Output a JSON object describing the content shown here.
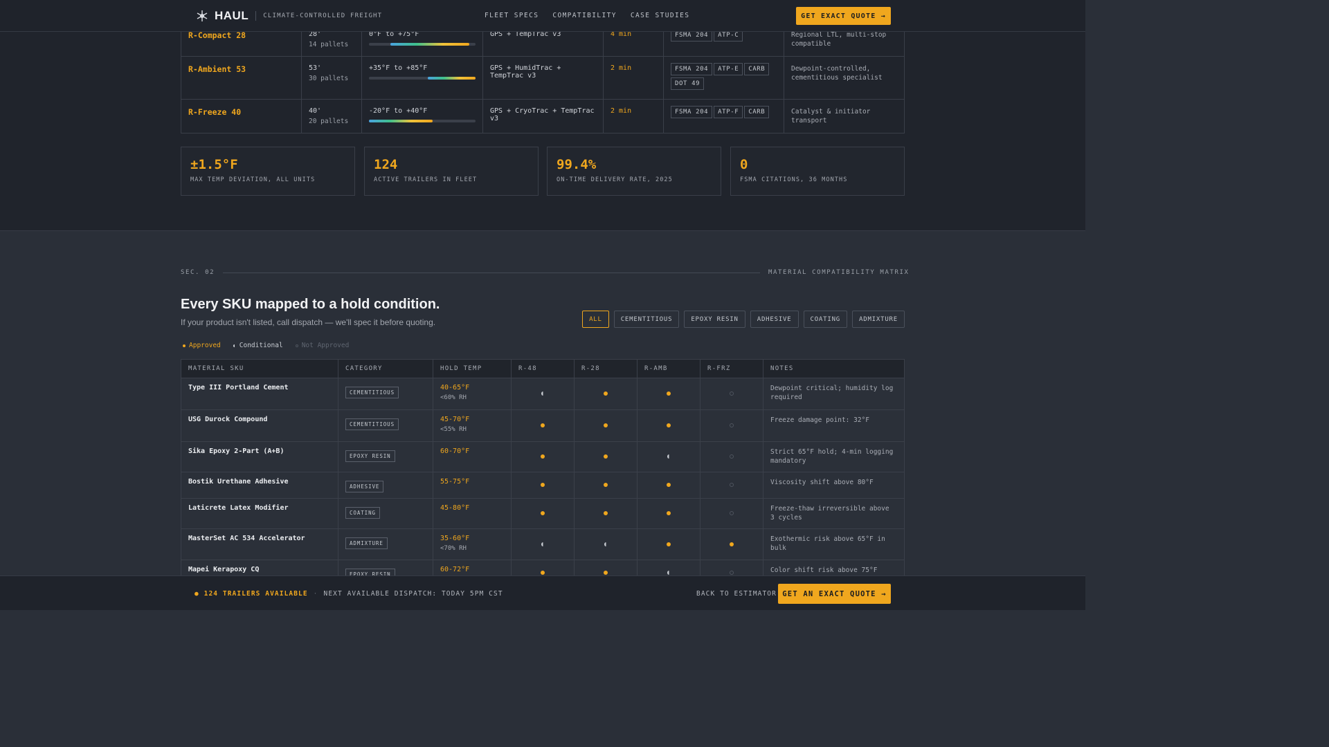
{
  "header": {
    "brand": "HAUL",
    "tagline": "CLIMATE-CONTROLLED FREIGHT",
    "nav": [
      "FLEET SPECS",
      "COMPATIBILITY",
      "CASE STUDIES"
    ],
    "cta": "GET EXACT QUOTE →"
  },
  "fleet": {
    "rows": [
      {
        "unit": "R-Compact 28",
        "length": "28'",
        "pallets": "14 pallets",
        "range": "0°F to +75°F",
        "bar_start": 0.2,
        "bar_end": 0.94,
        "tracking": "GPS + TempTrac v3",
        "interval": "4 min",
        "certs": [
          "FSMA 204",
          "ATP-C"
        ],
        "note": "Regional LTL, multi-stop compatible"
      },
      {
        "unit": "R-Ambient 53",
        "length": "53'",
        "pallets": "30 pallets",
        "range": "+35°F to +85°F",
        "bar_start": 0.55,
        "bar_end": 1.0,
        "tracking": "GPS + HumidTrac + TempTrac v3",
        "interval": "2 min",
        "certs": [
          "FSMA 204",
          "ATP-E",
          "CARB",
          "DOT 49"
        ],
        "note": "Dewpoint-controlled, cementitious specialist"
      },
      {
        "unit": "R-Freeze 40",
        "length": "40'",
        "pallets": "20 pallets",
        "range": "-20°F to +40°F",
        "bar_start": 0.0,
        "bar_end": 0.6,
        "tracking": "GPS + CryoTrac + TempTrac v3",
        "interval": "2 min",
        "certs": [
          "FSMA 204",
          "ATP-F",
          "CARB"
        ],
        "note": "Catalyst & initiator transport"
      }
    ]
  },
  "stats": [
    {
      "value": "±1.5°F",
      "label": "MAX TEMP DEVIATION, ALL UNITS"
    },
    {
      "value": "124",
      "label": "ACTIVE TRAILERS IN FLEET"
    },
    {
      "value": "99.4%",
      "label": "ON-TIME DELIVERY RATE, 2025"
    },
    {
      "value": "0",
      "label": "FSMA CITATIONS, 36 MONTHS"
    }
  ],
  "section2": {
    "label": "SEC. 02",
    "right_label": "MATERIAL COMPATIBILITY MATRIX",
    "title": "Every SKU mapped to a hold condition.",
    "subtitle": "If your product isn't listed, call dispatch — we'll spec it before quoting.",
    "filters": [
      "ALL",
      "CEMENTITIOUS",
      "EPOXY RESIN",
      "ADHESIVE",
      "COATING",
      "ADMIXTURE"
    ],
    "active_filter": "ALL",
    "legend": {
      "approved": "Approved",
      "conditional": "Conditional",
      "not_approved": "Not Approved"
    },
    "columns": [
      "MATERIAL SKU",
      "CATEGORY",
      "HOLD TEMP",
      "R-48",
      "R-28",
      "R-AMB",
      "R-FRZ",
      "NOTES"
    ],
    "rows": [
      {
        "sku": "Type III Portland Cement",
        "category": "CEMENTITIOUS",
        "temp": "40-65°F",
        "rh": "<60% RH",
        "r48": "cond",
        "r28": "approved",
        "ramb": "approved",
        "rfrz": "not",
        "notes": "Dewpoint critical; humidity log required"
      },
      {
        "sku": "USG Durock Compound",
        "category": "CEMENTITIOUS",
        "temp": "45-70°F",
        "rh": "<55% RH",
        "r48": "approved",
        "r28": "approved",
        "ramb": "approved",
        "rfrz": "not",
        "notes": "Freeze damage point: 32°F"
      },
      {
        "sku": "Sika Epoxy 2-Part (A+B)",
        "category": "EPOXY RESIN",
        "temp": "60-70°F",
        "rh": "",
        "r48": "approved",
        "r28": "approved",
        "ramb": "cond",
        "rfrz": "not",
        "notes": "Strict 65°F hold; 4-min logging mandatory"
      },
      {
        "sku": "Bostik Urethane Adhesive",
        "category": "ADHESIVE",
        "temp": "55-75°F",
        "rh": "",
        "r48": "approved",
        "r28": "approved",
        "ramb": "approved",
        "rfrz": "not",
        "notes": "Viscosity shift above 80°F"
      },
      {
        "sku": "Laticrete Latex Modifier",
        "category": "COATING",
        "temp": "45-80°F",
        "rh": "",
        "r48": "approved",
        "r28": "approved",
        "ramb": "approved",
        "rfrz": "not",
        "notes": "Freeze-thaw irreversible above 3 cycles"
      },
      {
        "sku": "MasterSet AC 534 Accelerator",
        "category": "ADMIXTURE",
        "temp": "35-60°F",
        "rh": "<70% RH",
        "r48": "cond",
        "r28": "cond",
        "ramb": "approved",
        "rfrz": "approved",
        "notes": "Exothermic risk above 65°F in bulk"
      },
      {
        "sku": "Mapei Kerapoxy CQ",
        "category": "EPOXY RESIN",
        "temp": "60-72°F",
        "rh": "",
        "r48": "approved",
        "r28": "approved",
        "ramb": "cond",
        "rfrz": "not",
        "notes": "Color shift risk above 75°F"
      }
    ]
  },
  "footer": {
    "available": "124 TRAILERS AVAILABLE",
    "next_dispatch": "NEXT AVAILABLE DISPATCH: TODAY 5PM CST",
    "back": "BACK TO ESTIMATOR ↑",
    "cta": "GET AN EXACT QUOTE →"
  },
  "colors": {
    "accent": "#f0a71e",
    "bg_dark": "#20242c",
    "bg_section": "#2a2f38"
  }
}
